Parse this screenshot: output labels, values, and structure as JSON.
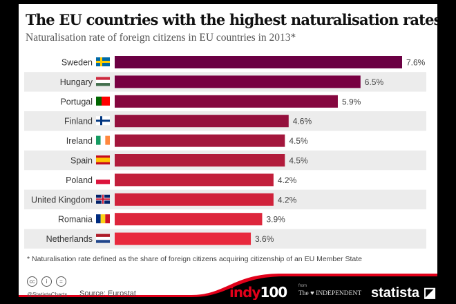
{
  "chart_data": {
    "type": "bar",
    "orientation": "horizontal",
    "title": "The EU countries with the highest naturalisation rates",
    "subtitle": "Naturalisation rate of foreign citizens in EU countries in 2013*",
    "categories": [
      "Sweden",
      "Hungary",
      "Portugal",
      "Finland",
      "Ireland",
      "Spain",
      "Poland",
      "United Kingdom",
      "Romania",
      "Netherlands"
    ],
    "values": [
      7.6,
      6.5,
      5.9,
      4.6,
      4.5,
      4.5,
      4.2,
      4.2,
      3.9,
      3.6
    ],
    "data_labels": [
      "7.6%",
      "6.5%",
      "5.9%",
      "4.6%",
      "4.5%",
      "4.5%",
      "4.2%",
      "4.2%",
      "3.9%",
      "3.6%"
    ],
    "xlim": [
      0,
      7.6
    ],
    "grid": false,
    "bar_colors": [
      "#6b0043",
      "#780042",
      "#85073f",
      "#94103d",
      "#a3163c",
      "#b11b3b",
      "#c21f3b",
      "#d0223b",
      "#dd263c",
      "#e8293d"
    ]
  },
  "footnote": "* Naturalisation rate defined as the share of foreign citizens acquiring citizenship of an EU Member State",
  "footer": {
    "handle": "@StatistaCharts",
    "source": "Source: Eurostat",
    "indy_a": "indy",
    "indy_b": "100",
    "from": "from",
    "independent": "The ♥ INDEPENDENT",
    "statista": "statista"
  }
}
